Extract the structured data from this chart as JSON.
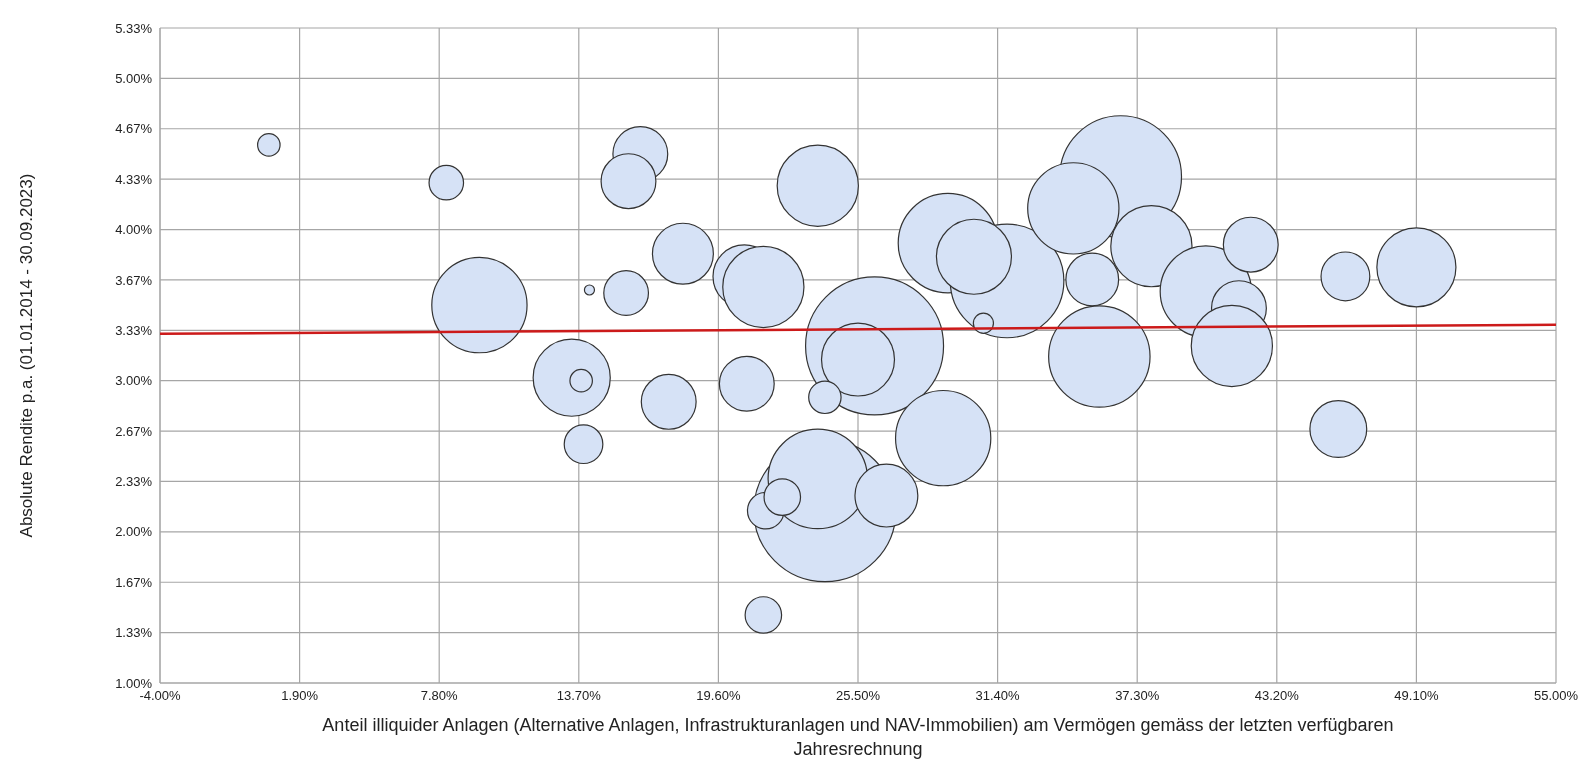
{
  "chart_data": {
    "type": "bubble",
    "ylabel": "Absolute Rendite p.a. (01.01.2014 - 30.09.2023)",
    "xlabel": "Anteil illiquider Anlagen (Alternative Anlagen, Infrastrukturanlagen und NAV-Immobilien) am Vermögen gemäss der letzten verfügbaren Jahresrechnung",
    "xlim": [
      -4,
      55
    ],
    "xticks": [
      {
        "value": -4,
        "label": "-4.00%"
      },
      {
        "value": 1.9,
        "label": "1.90%"
      },
      {
        "value": 7.8,
        "label": "7.80%"
      },
      {
        "value": 13.7,
        "label": "13.70%"
      },
      {
        "value": 19.6,
        "label": "19.60%"
      },
      {
        "value": 25.5,
        "label": "25.50%"
      },
      {
        "value": 31.4,
        "label": "31.40%"
      },
      {
        "value": 37.3,
        "label": "37.30%"
      },
      {
        "value": 43.2,
        "label": "43.20%"
      },
      {
        "value": 49.1,
        "label": "49.10%"
      },
      {
        "value": 55,
        "label": "55.00%"
      }
    ],
    "ylim": [
      1,
      5.3333
    ],
    "yticks": [
      {
        "value": 1,
        "label": "1.00%"
      },
      {
        "value": 1.3333,
        "label": "1.33%"
      },
      {
        "value": 1.6667,
        "label": "1.67%"
      },
      {
        "value": 2,
        "label": "2.00%"
      },
      {
        "value": 2.3333,
        "label": "2.33%"
      },
      {
        "value": 2.6667,
        "label": "2.67%"
      },
      {
        "value": 3,
        "label": "3.00%"
      },
      {
        "value": 3.3333,
        "label": "3.33%"
      },
      {
        "value": 3.6667,
        "label": "3.67%"
      },
      {
        "value": 4,
        "label": "4.00%"
      },
      {
        "value": 4.3333,
        "label": "4.33%"
      },
      {
        "value": 4.6667,
        "label": "4.67%"
      },
      {
        "value": 5,
        "label": "5.00%"
      },
      {
        "value": 5.3333,
        "label": "5.33%"
      }
    ],
    "grid": true,
    "series": [
      {
        "color": "#d6e2f6",
        "x": [
          0.6,
          8.1,
          9.5,
          14.15,
          15.7,
          16.3,
          15.8,
          13.4,
          13.8,
          13.9,
          17.5,
          18.1,
          23.8,
          20.7,
          21.5,
          26.2,
          25.5,
          20.8,
          24.1,
          24.1,
          23.8,
          21.6,
          22.3,
          26.7,
          29.1,
          21.5,
          29.3,
          31.8,
          30.4,
          30.8,
          36.6,
          34.6,
          37.9,
          35.4,
          35.7,
          40.2,
          41.6,
          41.3,
          42.1,
          46.1,
          49.1,
          45.8
        ],
        "values": [
          4.56,
          4.31,
          3.5,
          3.6,
          3.58,
          4.5,
          4.32,
          3.02,
          3.0,
          2.58,
          2.86,
          3.84,
          4.29,
          3.69,
          3.62,
          3.23,
          3.14,
          2.98,
          2.89,
          2.14,
          2.35,
          2.14,
          2.23,
          2.24,
          2.62,
          1.45,
          3.91,
          3.66,
          3.82,
          3.38,
          4.35,
          4.14,
          3.89,
          3.67,
          3.16,
          3.59,
          3.48,
          3.23,
          3.9,
          3.69,
          3.75,
          2.68
        ],
        "sizes": [
          0.025,
          0.059,
          0.45,
          0.005,
          0.099,
          0.149,
          0.149,
          0.295,
          0.025,
          0.074,
          0.149,
          0.184,
          0.327,
          0.196,
          0.327,
          0.944,
          0.264,
          0.149,
          0.052,
          1,
          0.49,
          0.066,
          0.066,
          0.196,
          0.45,
          0.066,
          0.49,
          0.64,
          0.279,
          0.02,
          0.735,
          0.413,
          0.327,
          0.138,
          0.51,
          0.413,
          0.149,
          0.327,
          0.149,
          0.118,
          0.31,
          0.16
        ]
      },
      {
        "type": "line",
        "color": "#cc1a1a",
        "x": [
          -4,
          55
        ],
        "values": [
          3.31,
          3.37
        ]
      }
    ]
  }
}
